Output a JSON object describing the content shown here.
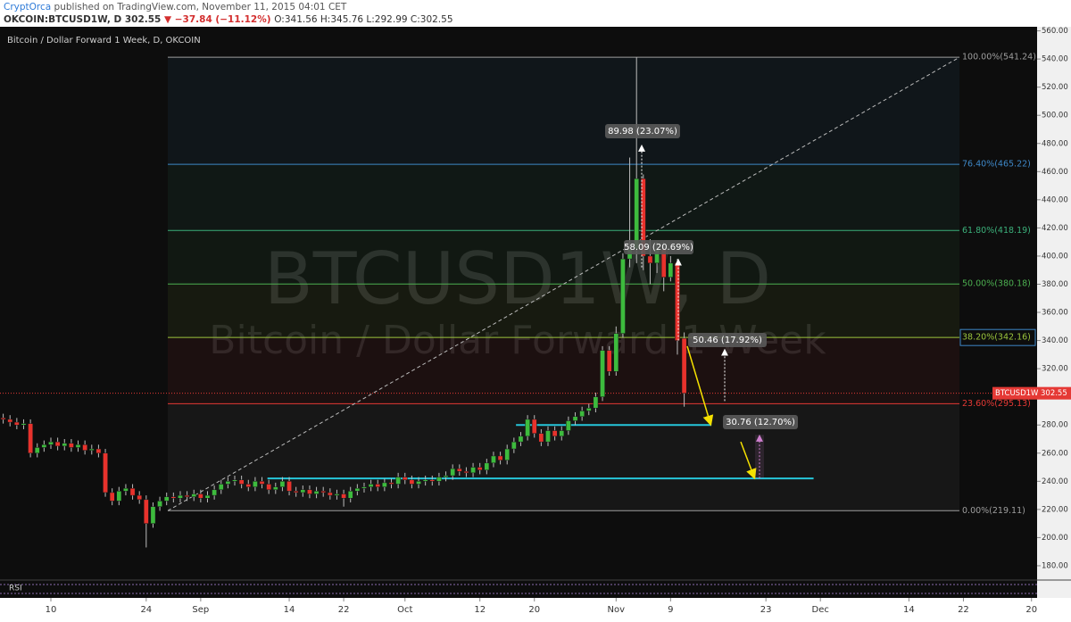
{
  "header": {
    "author": "CryptOrca",
    "published": "published on TradingView.com, November 11, 2015 04:01 CET",
    "symbol": "OKCOIN:BTCUSD1W, D",
    "last": "302.55",
    "change": "▼ −37.84 (−11.12%)",
    "ohlc": "O:341.56 H:345.76 L:292.99 C:302.55"
  },
  "chart_data": {
    "type": "candlestick",
    "title": "Bitcoin / Dollar Forward 1 Week, D, OKCOIN",
    "watermark": {
      "symbol": "BTCUSD1W, D",
      "description": "Bitcoin / Dollar Forward 1 Week"
    },
    "x": [
      215,
      216,
      217,
      218,
      219,
      220,
      221,
      222,
      223,
      224,
      225,
      226,
      227,
      228,
      229,
      230,
      231,
      232,
      233,
      234,
      235,
      236,
      237,
      238,
      239,
      240,
      241,
      242,
      243,
      244,
      245,
      246,
      247,
      248,
      249,
      250,
      251,
      252,
      253,
      254,
      255,
      256,
      257,
      258,
      259,
      260,
      261,
      262,
      263,
      264,
      265,
      266,
      267,
      268,
      269,
      270,
      271,
      272,
      273,
      274,
      275,
      276,
      277,
      278,
      279,
      280,
      281,
      282,
      283,
      284,
      285,
      286,
      287,
      288,
      289,
      290,
      291,
      292,
      293,
      294,
      295,
      296,
      297,
      298,
      299,
      300,
      301,
      302,
      303,
      304,
      305,
      306,
      307,
      308,
      309,
      310,
      311,
      312,
      313,
      314,
      315
    ],
    "open": [
      285,
      284,
      282,
      280,
      281,
      260,
      264,
      266,
      268,
      265,
      267,
      264,
      266,
      262,
      263,
      260,
      232,
      226,
      233,
      235,
      230,
      227,
      210,
      222,
      226,
      229,
      228,
      230,
      229,
      231,
      228,
      230,
      234,
      238,
      240,
      241,
      238,
      236,
      240,
      238,
      234,
      236,
      240,
      233,
      232,
      234,
      231,
      233,
      232,
      230,
      231,
      228,
      233,
      235,
      236,
      238,
      236,
      239,
      238,
      243,
      241,
      238,
      240,
      241,
      240,
      243,
      244,
      249,
      247,
      246,
      250,
      248,
      253,
      258,
      255,
      263,
      268,
      272,
      284,
      274,
      268,
      276,
      272,
      276,
      283,
      286,
      290,
      292,
      300,
      333,
      318,
      345,
      398,
      405,
      455,
      400,
      395,
      405,
      385,
      395,
      341.56
    ],
    "high": [
      288,
      287,
      285,
      284,
      284,
      267,
      269,
      271,
      271,
      270,
      270,
      269,
      269,
      266,
      266,
      263,
      235,
      236,
      238,
      238,
      233,
      230,
      225,
      229,
      232,
      232,
      233,
      233,
      234,
      234,
      233,
      237,
      241,
      243,
      244,
      244,
      241,
      243,
      243,
      241,
      239,
      243,
      243,
      236,
      237,
      237,
      236,
      236,
      235,
      234,
      234,
      236,
      238,
      239,
      241,
      241,
      242,
      242,
      246,
      246,
      244,
      243,
      244,
      244,
      246,
      247,
      252,
      252,
      250,
      253,
      253,
      256,
      261,
      261,
      266,
      271,
      275,
      287,
      287,
      277,
      279,
      279,
      279,
      286,
      289,
      293,
      295,
      303,
      336,
      336,
      350,
      402,
      470,
      541.24,
      458,
      412,
      410,
      410,
      400,
      398,
      345.76
    ],
    "low": [
      281,
      279,
      277,
      277,
      257,
      257,
      261,
      263,
      262,
      262,
      261,
      261,
      259,
      259,
      257,
      229,
      223,
      223,
      230,
      227,
      224,
      193,
      207,
      219,
      223,
      225,
      225,
      226,
      226,
      225,
      225,
      227,
      231,
      235,
      237,
      235,
      233,
      233,
      235,
      231,
      231,
      233,
      230,
      229,
      229,
      228,
      228,
      229,
      227,
      227,
      222,
      225,
      230,
      232,
      233,
      233,
      233,
      235,
      235,
      238,
      235,
      235,
      237,
      237,
      237,
      240,
      241,
      244,
      243,
      243,
      245,
      245,
      250,
      252,
      252,
      260,
      265,
      269,
      271,
      265,
      265,
      269,
      269,
      273,
      280,
      283,
      287,
      289,
      297,
      315,
      315,
      342,
      392,
      395,
      390,
      380,
      388,
      375,
      382,
      330,
      292.99
    ],
    "close": [
      284,
      282,
      280,
      281,
      260,
      264,
      266,
      268,
      265,
      267,
      264,
      266,
      262,
      263,
      260,
      232,
      226,
      233,
      235,
      230,
      227,
      210,
      222,
      226,
      229,
      228,
      230,
      229,
      231,
      228,
      230,
      234,
      238,
      240,
      241,
      238,
      236,
      240,
      238,
      234,
      236,
      240,
      233,
      232,
      234,
      231,
      233,
      232,
      230,
      231,
      228,
      233,
      235,
      236,
      238,
      236,
      239,
      238,
      243,
      241,
      238,
      240,
      241,
      240,
      243,
      244,
      249,
      247,
      246,
      250,
      248,
      253,
      258,
      255,
      263,
      268,
      272,
      284,
      274,
      268,
      276,
      272,
      276,
      283,
      286,
      290,
      292,
      300,
      333,
      318,
      345,
      398,
      405,
      455,
      400,
      395,
      405,
      385,
      395,
      340,
      302.55
    ],
    "up_color": "#3dbb3d",
    "down_color": "#e8322c",
    "xlim": [
      214.53,
      366.82
    ],
    "xticks": [
      {
        "value": 222,
        "label": "10"
      },
      {
        "value": 236,
        "label": "24"
      },
      {
        "value": 244,
        "label": "Sep"
      },
      {
        "value": 257,
        "label": "14"
      },
      {
        "value": 265,
        "label": "22"
      },
      {
        "value": 274,
        "label": "Oct"
      },
      {
        "value": 285,
        "label": "12"
      },
      {
        "value": 293,
        "label": "20"
      },
      {
        "value": 305,
        "label": "Nov"
      },
      {
        "value": 313,
        "label": "9"
      },
      {
        "value": 327,
        "label": "23"
      },
      {
        "value": 335,
        "label": "Dec"
      },
      {
        "value": 348,
        "label": "14"
      },
      {
        "value": 356,
        "label": "22"
      },
      {
        "value": 366,
        "label": "20"
      }
    ],
    "ylim": [
      171.1,
      562.9
    ],
    "yticks": [
      {
        "value": 180,
        "label": "180.00"
      },
      {
        "value": 200,
        "label": "200.00"
      },
      {
        "value": 220,
        "label": "220.00"
      },
      {
        "value": 240,
        "label": "240.00"
      },
      {
        "value": 260,
        "label": "260.00"
      },
      {
        "value": 280,
        "label": "280.00"
      },
      {
        "value": 300,
        "label": "300.00"
      },
      {
        "value": 320,
        "label": "320.00"
      },
      {
        "value": 340,
        "label": "340.00"
      },
      {
        "value": 360,
        "label": "360.00"
      },
      {
        "value": 380,
        "label": "380.00"
      },
      {
        "value": 400,
        "label": "400.00"
      },
      {
        "value": 420,
        "label": "420.00"
      },
      {
        "value": 440,
        "label": "440.00"
      },
      {
        "value": 460,
        "label": "460.00"
      },
      {
        "value": 480,
        "label": "480.00"
      },
      {
        "value": 500,
        "label": "500.00"
      },
      {
        "value": 520,
        "label": "520.00"
      },
      {
        "value": 540,
        "label": "540.00"
      },
      {
        "value": 560,
        "label": "560.00"
      }
    ],
    "fib_levels": [
      {
        "value": 541.24,
        "label": "100.00%(541.24)",
        "color": "#9e9e9e"
      },
      {
        "value": 465.22,
        "label": "76.40%(465.22)",
        "color": "#3e88c8"
      },
      {
        "value": 418.19,
        "label": "61.80%(418.19)",
        "color": "#3bb07a"
      },
      {
        "value": 380.18,
        "label": "50.00%(380.18)",
        "color": "#4caf50"
      },
      {
        "value": 342.16,
        "label": "38.20%(342.16)",
        "color": "#9bc53d"
      },
      {
        "value": 295.13,
        "label": "23.60%(295.13)",
        "color": "#e53935"
      },
      {
        "value": 219.11,
        "label": "0.00%(219.11)",
        "color": "#9e9e9e"
      }
    ],
    "support_lines": [
      {
        "value": 280,
        "x": [
          290.3,
          319
        ],
        "color": "#26c6da"
      },
      {
        "value": 242,
        "x": [
          253.8,
          334
        ],
        "color": "#26c6da"
      }
    ],
    "last_price": {
      "symbol": "BTCUSD1W",
      "label": "302.55",
      "value": 302.55,
      "color": "#e53935"
    },
    "annotations": [
      "89.98 (23.07%)",
      "58.09 (20.69%)",
      "50.46 (17.92%)",
      "30.76 (12.70%)"
    ],
    "rsi_label": "RSI"
  }
}
